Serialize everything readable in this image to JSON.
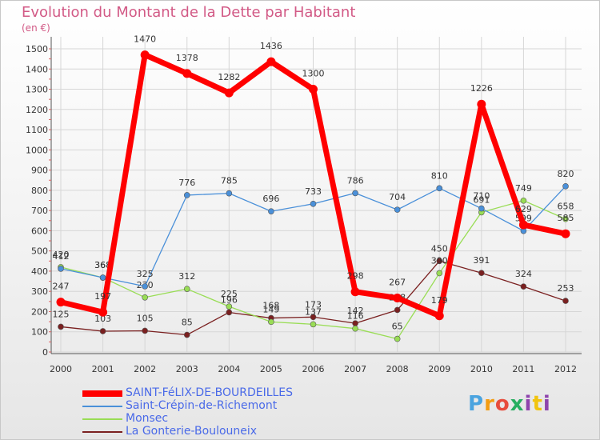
{
  "chart_data": {
    "type": "line",
    "title": "Evolution du Montant de la Dette par Habitant",
    "subtitle": "(en €)",
    "x": [
      "2000",
      "2001",
      "2002",
      "2003",
      "2004",
      "2005",
      "2006",
      "2007",
      "2008",
      "2009",
      "2010",
      "2011",
      "2012"
    ],
    "ylim": [
      0,
      1500
    ],
    "yticks": [
      0,
      100,
      200,
      300,
      400,
      500,
      600,
      700,
      800,
      900,
      1000,
      1100,
      1200,
      1300,
      1400,
      1500
    ],
    "grid": true,
    "legend_position": "bottom-left",
    "series": [
      {
        "name": "SAINT-FéLIX-DE-BOURDEILLES",
        "color": "#ff0000",
        "values": [
          247,
          197,
          1470,
          1378,
          1282,
          1436,
          1300,
          298,
          267,
          179,
          1226,
          629,
          585
        ]
      },
      {
        "name": "Saint-Crépin-de-Richemont",
        "color": "#4a90d9",
        "values": [
          412,
          368,
          325,
          776,
          785,
          696,
          733,
          786,
          704,
          810,
          710,
          599,
          820
        ]
      },
      {
        "name": "Monsec",
        "color": "#99dd55",
        "values": [
          420,
          368,
          270,
          312,
          225,
          149,
          137,
          116,
          65,
          390,
          691,
          749,
          658
        ]
      },
      {
        "name": "La Gonterie-Boulouneix",
        "color": "#7a2020",
        "values": [
          125,
          103,
          105,
          85,
          196,
          168,
          173,
          142,
          208,
          450,
          391,
          324,
          253
        ]
      }
    ]
  },
  "logo": {
    "text": "Proxiti"
  }
}
